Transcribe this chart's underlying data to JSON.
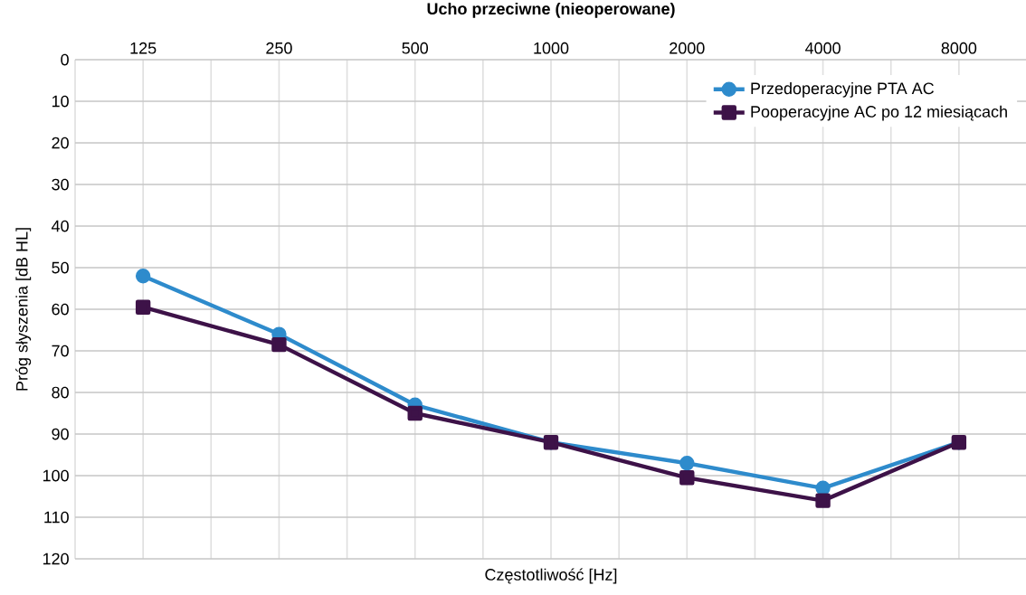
{
  "chart_data": {
    "type": "line",
    "title": "Ucho przeciwne (nieoperowane)",
    "xlabel": "Częstotliwość [Hz]",
    "ylabel": "Próg słyszenia [dB HL]",
    "categories": [
      "125",
      "250",
      "500",
      "1000",
      "2000",
      "4000",
      "8000"
    ],
    "ylim": [
      120,
      0
    ],
    "yticks": [
      0,
      10,
      20,
      30,
      40,
      50,
      60,
      70,
      80,
      90,
      100,
      110,
      120
    ],
    "grid": true,
    "legend": "top right",
    "series": [
      {
        "name": "Przedoperacyjne PTA AC",
        "color": "#2e8bcc",
        "marker": "circle",
        "values": [
          52,
          66,
          83,
          92,
          97,
          103,
          92
        ]
      },
      {
        "name": "Pooperacyjne AC po 12 miesiącach",
        "color": "#3d1248",
        "marker": "square",
        "values": [
          59.5,
          68.5,
          85,
          92,
          100.5,
          106,
          92
        ]
      }
    ]
  }
}
